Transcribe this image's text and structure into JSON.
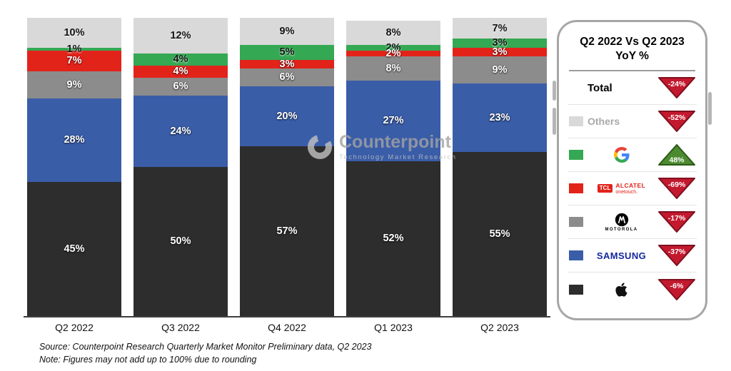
{
  "watermark": {
    "brand": "Counterpoint",
    "tagline": "Technology Market Research"
  },
  "footer": {
    "source": "Source: Counterpoint Research Quarterly Market Monitor Preliminary data, Q2 2023",
    "note": "Note: Figures may not add up to 100% due to rounding"
  },
  "chart_data": {
    "type": "bar",
    "stacked": true,
    "unit": "%",
    "ylim": [
      0,
      100
    ],
    "categories": [
      "Q2 2022",
      "Q3 2022",
      "Q4 2022",
      "Q1 2023",
      "Q2 2023"
    ],
    "series": [
      {
        "name": "Apple",
        "color": "#2d2d2d",
        "label_style": "light",
        "values": [
          45,
          50,
          57,
          52,
          55
        ]
      },
      {
        "name": "Samsung",
        "color": "#3a5da8",
        "label_style": "light",
        "values": [
          28,
          24,
          20,
          27,
          23
        ]
      },
      {
        "name": "Motorola",
        "color": "#8c8c8c",
        "label_style": "light",
        "values": [
          9,
          6,
          6,
          8,
          9
        ]
      },
      {
        "name": "TCL Alcatel",
        "color": "#e2231a",
        "label_style": "light",
        "values": [
          7,
          4,
          3,
          2,
          3
        ]
      },
      {
        "name": "Google",
        "color": "#34a853",
        "label_style": "dark",
        "values": [
          1,
          4,
          5,
          2,
          3
        ]
      },
      {
        "name": "Others",
        "color": "#d9d9d9",
        "label_style": "dark",
        "values": [
          10,
          12,
          9,
          8,
          7
        ]
      }
    ]
  },
  "legend_panel": {
    "title_line1": "Q2 2022 Vs Q2 2023",
    "title_line2": "YoY %",
    "down_color": "#c3192e",
    "down_stroke": "#7e101f",
    "up_color": "#4c8a2f",
    "up_stroke": "#2c5a18",
    "rows": [
      {
        "name": "Total",
        "label": "Total",
        "change": "-24%",
        "direction": "down"
      },
      {
        "name": "Others",
        "label": "Others",
        "swatch": "#d9d9d9",
        "change": "-52%",
        "direction": "down"
      },
      {
        "name": "Google",
        "logo": "google",
        "swatch": "#34a853",
        "change": "48%",
        "direction": "up"
      },
      {
        "name": "TCL Alcatel",
        "logo": "tcl-alcatel",
        "swatch": "#e2231a",
        "badge": "TCL",
        "label": "ALCATEL",
        "label2": "onetouch.",
        "change": "-69%",
        "direction": "down"
      },
      {
        "name": "Motorola",
        "logo": "motorola",
        "swatch": "#8c8c8c",
        "label": "MOTOROLA",
        "change": "-17%",
        "direction": "down"
      },
      {
        "name": "Samsung",
        "logo": "samsung",
        "swatch": "#3a5da8",
        "label": "SAMSUNG",
        "change": "-37%",
        "direction": "down"
      },
      {
        "name": "Apple",
        "logo": "apple",
        "swatch": "#2d2d2d",
        "change": "-6%",
        "direction": "down"
      }
    ]
  }
}
